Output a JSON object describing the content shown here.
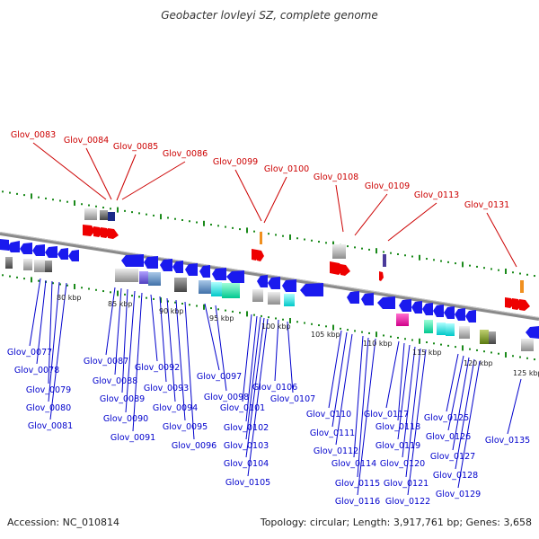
{
  "header": {
    "title": "Geobacter lovleyi SZ, complete genome"
  },
  "footer": {
    "accession": "Accession: NC_010814",
    "summary": "Topology: circular; Length: 3,917,761 bp; Genes: 3,658"
  },
  "ticks": [
    "80 kbp",
    "85 kbp",
    "90 kbp",
    "95 kbp",
    "100 kbp",
    "105 kbp",
    "110 kbp",
    "115 kbp",
    "120 kbp",
    "125 kbp"
  ],
  "labels_top": [
    "Glov_0083",
    "Glov_0084",
    "Glov_0085",
    "Glov_0086",
    "Glov_0099",
    "Glov_0100",
    "Glov_0108",
    "Glov_0109",
    "Glov_0113",
    "Glov_0131"
  ],
  "labels_bottom": [
    "Glov_0077",
    "Glov_0078",
    "Glov_0079",
    "Glov_0080",
    "Glov_0081",
    "Glov_0087",
    "Glov_0088",
    "Glov_0089",
    "Glov_0090",
    "Glov_0091",
    "Glov_0092",
    "Glov_0093",
    "Glov_0094",
    "Glov_0095",
    "Glov_0096",
    "Glov_0097",
    "Glov_0098",
    "Glov_0101",
    "Glov_0102",
    "Glov_0103",
    "Glov_0104",
    "Glov_0105",
    "Glov_0106",
    "Glov_0107",
    "Glov_0110",
    "Glov_0111",
    "Glov_0112",
    "Glov_0114",
    "Glov_0115",
    "Glov_0116",
    "Glov_0117",
    "Glov_0118",
    "Glov_0119",
    "Glov_0120",
    "Glov_0121",
    "Glov_0122",
    "Glov_0125",
    "Glov_0126",
    "Glov_0127",
    "Glov_0128",
    "Glov_0129",
    "Glov_0135"
  ],
  "colors": {
    "top_label": "#cc0000",
    "bottom_label": "#0000cc",
    "forward_gene": "#ee0000",
    "reverse_gene": "#1a1aee",
    "tick_mark": "#1a8a1a",
    "backbone": "#888888"
  }
}
